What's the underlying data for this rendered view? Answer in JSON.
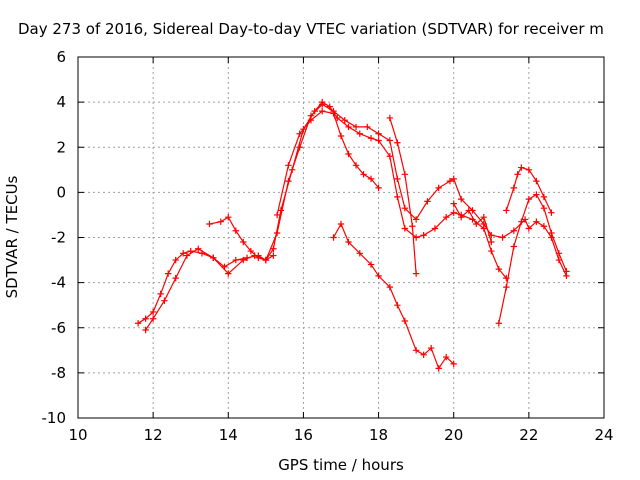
{
  "chart_data": {
    "type": "scatter",
    "title": "Day 273 of 2016, Sidereal Day-to-day VTEC variation (SDTVAR) for receiver m",
    "xlabel": "GPS time / hours",
    "ylabel": "SDTVAR / TECUs",
    "xlim": [
      10,
      24
    ],
    "ylim": [
      -10,
      6
    ],
    "xticks": [
      "10",
      "12",
      "14",
      "16",
      "18",
      "20",
      "22",
      "24"
    ],
    "yticks": [
      "-10",
      "-8",
      "-6",
      "-4",
      "-2",
      "0",
      "2",
      "4",
      "6"
    ],
    "grid": true,
    "marker": "plus",
    "color": "#ff0000",
    "series": [
      {
        "x": [
          11.6,
          11.8,
          12.0,
          12.2,
          12.4,
          12.6,
          12.8,
          13.0,
          13.3,
          13.6,
          13.9,
          14.2,
          14.5,
          14.8,
          15.0,
          15.2,
          15.4,
          15.7,
          16.0,
          16.3,
          16.5,
          16.7,
          16.9,
          17.2,
          17.5,
          17.8,
          18.0,
          18.3,
          18.5,
          18.7,
          19.0,
          19.2,
          19.5,
          19.8,
          20.0,
          20.2,
          20.5,
          20.8,
          21.0,
          21.2,
          21.4
        ],
        "y": [
          -5.8,
          -5.6,
          -5.3,
          -4.5,
          -3.6,
          -3.0,
          -2.7,
          -2.6,
          -2.7,
          -2.9,
          -3.3,
          -3.0,
          -2.9,
          -2.8,
          -3.0,
          -2.5,
          -0.8,
          1.0,
          2.8,
          3.6,
          4.0,
          3.8,
          3.3,
          2.9,
          2.6,
          2.4,
          2.3,
          1.6,
          -0.2,
          -1.6,
          -2.0,
          -1.9,
          -1.6,
          -1.1,
          -0.9,
          -1.0,
          -1.2,
          -1.6,
          -2.6,
          -3.4,
          -3.8
        ]
      },
      {
        "x": [
          11.8,
          12.0,
          12.3,
          12.6,
          12.9,
          13.2,
          13.6,
          14.0,
          14.4,
          14.7,
          15.0,
          15.3,
          15.6,
          15.9,
          16.2,
          16.5,
          16.8,
          17.1,
          17.4,
          17.7,
          18.0,
          18.3,
          18.5,
          18.7,
          19.0,
          19.3,
          19.6,
          19.9,
          20.0,
          20.2,
          20.5,
          20.8,
          21.0,
          21.3,
          21.6,
          21.9,
          22.0,
          22.2,
          22.4,
          22.6,
          22.8,
          23.0
        ],
        "y": [
          -6.1,
          -5.6,
          -4.8,
          -3.8,
          -2.8,
          -2.5,
          -2.9,
          -3.6,
          -3.0,
          -2.8,
          -3.0,
          -1.8,
          0.5,
          2.0,
          3.4,
          3.9,
          3.6,
          3.2,
          2.9,
          2.9,
          2.6,
          2.3,
          0.6,
          -0.7,
          -1.2,
          -0.4,
          0.2,
          0.5,
          0.6,
          -0.3,
          -0.8,
          -1.4,
          -1.9,
          -2.0,
          -1.7,
          -1.2,
          -1.6,
          -1.3,
          -1.5,
          -2.0,
          -3.0,
          -3.7
        ]
      },
      {
        "x": [
          13.5,
          13.8,
          14.0,
          14.2,
          14.4,
          14.6,
          14.8,
          15.0,
          15.2
        ],
        "y": [
          -1.4,
          -1.3,
          -1.1,
          -1.7,
          -2.2,
          -2.6,
          -2.9,
          -3.0,
          -2.8
        ]
      },
      {
        "x": [
          15.3,
          15.6,
          15.9,
          16.2,
          16.5,
          16.8,
          17.0,
          17.2,
          17.4,
          17.6,
          17.8,
          18.0
        ],
        "y": [
          -1.0,
          1.2,
          2.6,
          3.2,
          3.6,
          3.5,
          2.5,
          1.7,
          1.2,
          0.8,
          0.6,
          0.2
        ]
      },
      {
        "x": [
          16.8,
          17.0,
          17.2,
          17.5,
          17.8,
          18.0,
          18.3,
          18.5,
          18.7,
          19.0,
          19.2,
          19.4,
          19.6,
          19.8,
          20.0
        ],
        "y": [
          -2.0,
          -1.4,
          -2.2,
          -2.7,
          -3.2,
          -3.7,
          -4.2,
          -5.0,
          -5.7,
          -7.0,
          -7.2,
          -6.9,
          -7.8,
          -7.3,
          -7.6
        ]
      },
      {
        "x": [
          18.3,
          18.5,
          18.7,
          18.9,
          19.0
        ],
        "y": [
          3.3,
          2.2,
          0.8,
          -1.5,
          -3.6
        ]
      },
      {
        "x": [
          20.0,
          20.2,
          20.4,
          20.6,
          20.8,
          21.0
        ],
        "y": [
          -0.5,
          -1.1,
          -0.8,
          -1.4,
          -1.1,
          -2.2
        ]
      },
      {
        "x": [
          21.2,
          21.4,
          21.6,
          21.8,
          22.0,
          22.2,
          22.4,
          22.6,
          22.8,
          23.0
        ],
        "y": [
          -5.8,
          -4.2,
          -2.4,
          -1.3,
          -0.3,
          -0.1,
          -0.7,
          -1.8,
          -2.7,
          -3.5
        ]
      },
      {
        "x": [
          21.4,
          21.6,
          21.7,
          21.8,
          22.0,
          22.2,
          22.4,
          22.6
        ],
        "y": [
          -0.8,
          0.2,
          0.8,
          1.1,
          1.0,
          0.5,
          -0.2,
          -0.9
        ]
      }
    ]
  }
}
